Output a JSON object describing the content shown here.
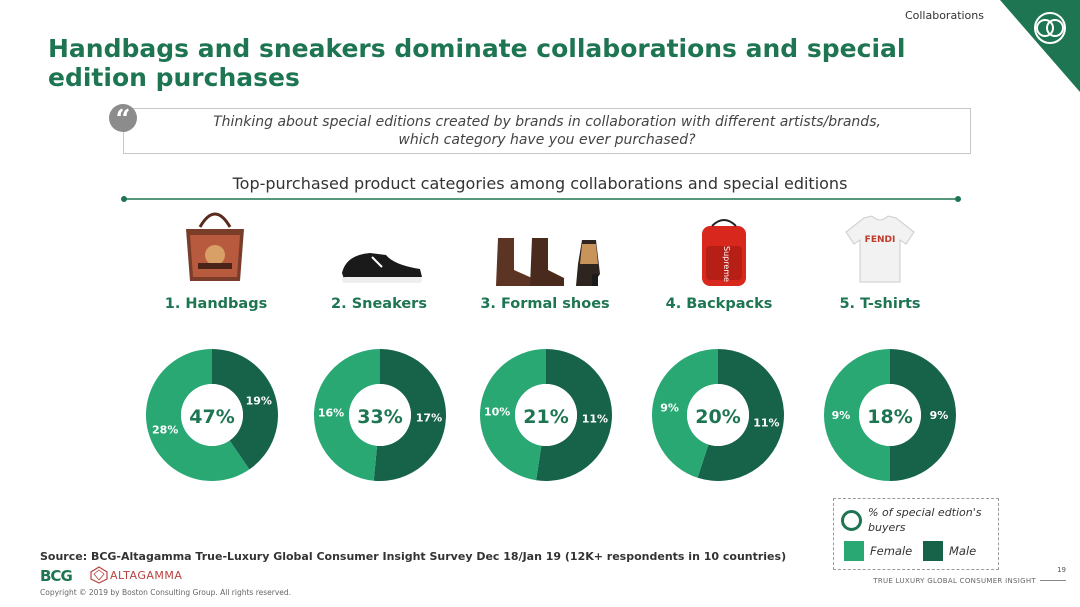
{
  "header": {
    "section": "Collaborations",
    "title": "Handbags and sneakers dominate collaborations and special edition purchases"
  },
  "question": {
    "mark": "“",
    "line1": "Thinking about special editions created by brands in collaboration with different artists/brands,",
    "line2": "which category have you ever purchased?"
  },
  "chart_data": {
    "type": "pie",
    "title": "Top-purchased product categories among collaborations and special editions",
    "categories": [
      "1. Handbags",
      "2. Sneakers",
      "3. Formal shoes",
      "4. Backpacks",
      "5. T-shirts"
    ],
    "totals": [
      "47%",
      "33%",
      "21%",
      "20%",
      "18%"
    ],
    "series": [
      {
        "name": "Female",
        "values": [
          28,
          16,
          10,
          9,
          9
        ],
        "labels": [
          "28%",
          "16%",
          "10%",
          "9%",
          "9%"
        ],
        "color": "#29a874"
      },
      {
        "name": "Male",
        "values": [
          19,
          17,
          11,
          11,
          9
        ],
        "labels": [
          "19%",
          "17%",
          "11%",
          "11%",
          "9%"
        ],
        "color": "#16634a"
      }
    ],
    "legend": {
      "title": "% of special edtion's buyers",
      "female": "Female",
      "male": "Male",
      "position": "bottom-right"
    },
    "product_icons": [
      "handbag-icon",
      "sneaker-icon",
      "formal-shoes-icon",
      "backpack-icon",
      "t-shirt-icon"
    ],
    "backpack_brand": "Supreme",
    "tshirt_brand": "FENDI"
  },
  "footer": {
    "source": "Source: BCG-Altagamma True-Luxury Global Consumer Insight Survey Dec 18/Jan 19 (12K+ respondents in 10 countries)",
    "bcg": "BCG",
    "altagamma": "ALTAGAMMA",
    "copyright": "Copyright © 2019 by Boston Consulting Group. All rights reserved.",
    "page": "19",
    "report": "TRUE LUXURY GLOBAL CONSUMER INSIGHT"
  },
  "colors": {
    "brand": "#1e7552",
    "female": "#29a874",
    "male": "#16634a"
  }
}
